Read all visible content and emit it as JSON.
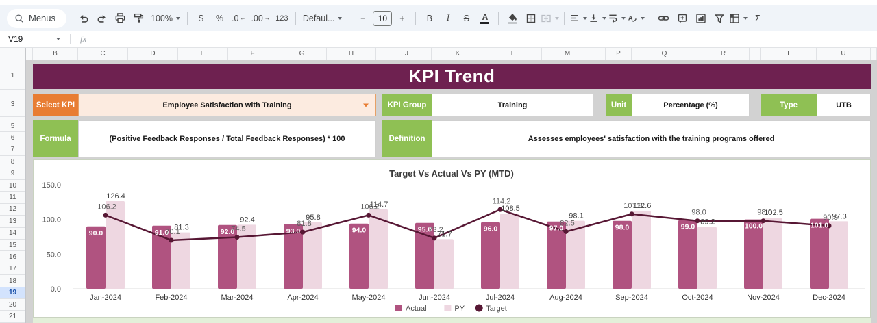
{
  "toolbar": {
    "labels": {
      "menus": "Menus",
      "zoom": "100%",
      "currency": "$",
      "percent": "%",
      "dec_decrease": ".0",
      "dec_increase": ".00",
      "number_format": "123",
      "font": "Defaul...",
      "minus": "−",
      "font_size": "10",
      "plus": "+",
      "bold": "B",
      "italic": "I",
      "strikethrough": "S",
      "text_color": "A",
      "functions": "Σ"
    },
    "icons": [
      "search-icon",
      "undo-icon",
      "redo-icon",
      "print-icon",
      "paint-format-icon",
      "zoom-caret",
      "font-caret",
      "bold-icon",
      "italic-icon",
      "strikethrough-icon",
      "text-color-icon",
      "fill-color-icon",
      "borders-icon",
      "merge-cells-icon",
      "align-icon",
      "vertical-align-icon",
      "text-wrap-icon",
      "text-rotate-icon",
      "link-icon",
      "comment-icon",
      "chart-icon",
      "filter-icon",
      "pivot-icon",
      "functions-icon"
    ]
  },
  "name_box": {
    "cell_ref": "V19",
    "fx": "fx"
  },
  "grid": {
    "column_headers": [
      "A",
      "B",
      "C",
      "D",
      "E",
      "F",
      "G",
      "H",
      "I",
      "J",
      "K",
      "L",
      "M",
      "O",
      "P",
      "Q",
      "R",
      "S",
      "T",
      "U"
    ],
    "row_count": 21,
    "selected_row": 19,
    "collapsed_rows": [
      2,
      4
    ]
  },
  "kpi": {
    "title": "KPI Trend",
    "select_kpi_label": "Select KPI",
    "select_kpi_value": "Employee Satisfaction with Training",
    "kpi_group_label": "KPI Group",
    "kpi_group_value": "Training",
    "unit_label": "Unit",
    "unit_value": "Percentage (%)",
    "type_label": "Type",
    "type_value": "UTB",
    "formula_label": "Formula",
    "formula_value": "(Positive Feedback Responses / Total Feedback Responses) * 100",
    "definition_label": "Definition",
    "definition_value": "Assesses employees' satisfaction with the training programs offered"
  },
  "chart_data": {
    "type": "bar",
    "title": "Target Vs Actual Vs PY (MTD)",
    "categories": [
      "Jan-2024",
      "Feb-2024",
      "Mar-2024",
      "Apr-2024",
      "May-2024",
      "Jun-2024",
      "Jul-2024",
      "Aug-2024",
      "Sep-2024",
      "Oct-2024",
      "Nov-2024",
      "Dec-2024"
    ],
    "series": [
      {
        "name": "Actual",
        "type": "bar",
        "values": [
          90.0,
          91.0,
          92.0,
          93.0,
          94.0,
          95.0,
          96.0,
          97.0,
          98.0,
          99.0,
          100.0,
          101.0
        ]
      },
      {
        "name": "PY",
        "type": "bar",
        "values": [
          126.4,
          81.3,
          92.4,
          95.8,
          114.7,
          71.7,
          108.5,
          98.1,
          112.6,
          89.2,
          102.5,
          97.3
        ]
      },
      {
        "name": "Target",
        "type": "line",
        "values": [
          106.2,
          70.1,
          74.5,
          81.8,
          106.2,
          73.2,
          114.2,
          82.5,
          107.8,
          98.0,
          98.0,
          90.9
        ]
      }
    ],
    "ylim": [
      0,
      150
    ],
    "yticks": [
      150.0,
      100.0,
      50.0,
      0.0
    ],
    "legend_position": "bottom",
    "grid": false
  },
  "colors": {
    "banner": "#6e2150",
    "orange": "#e87d33",
    "orange_fill": "#fcebe0",
    "green": "#8fc054",
    "green_strip": "#e3efd9",
    "actual": "#b05380",
    "py": "#eed7e1",
    "target": "#571734",
    "selected_row_bg": "#d3e3fd",
    "selected_row_text": "#174ea6"
  }
}
